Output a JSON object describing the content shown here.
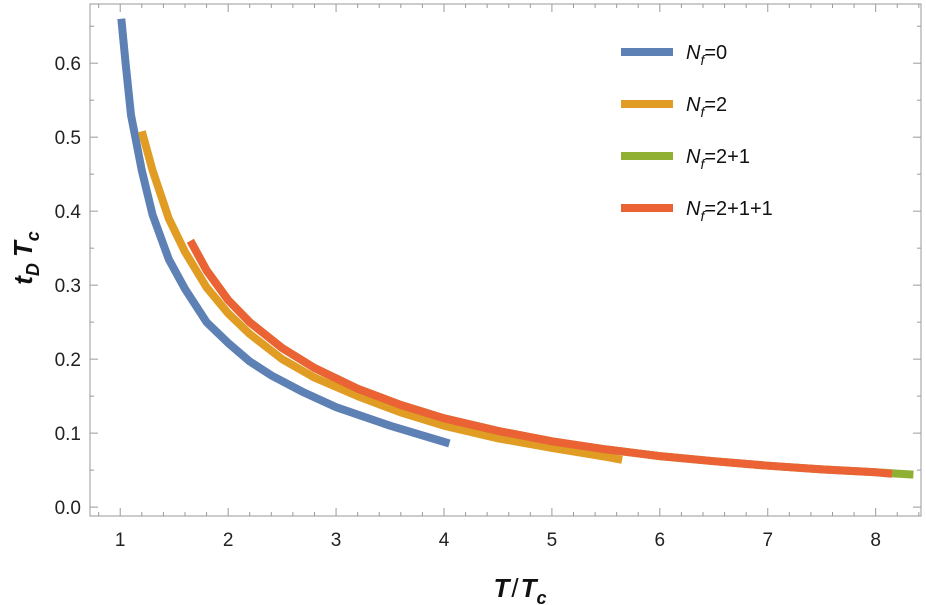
{
  "chart_data": {
    "type": "line",
    "title": "",
    "xlabel": {
      "main": "T",
      "sep": "/",
      "main2": "T",
      "sub2": "c"
    },
    "ylabel": {
      "main": "t",
      "sub": "D",
      "main2": "T",
      "sub2": "c"
    },
    "xlim": [
      0.72,
      8.42
    ],
    "ylim": [
      -0.012,
      0.68
    ],
    "xticks": [
      1,
      2,
      3,
      4,
      5,
      6,
      7,
      8
    ],
    "yticks": [
      0.0,
      0.1,
      0.2,
      0.3,
      0.4,
      0.5,
      0.6
    ],
    "ytick_labels": [
      "0.0",
      "0.1",
      "0.2",
      "0.3",
      "0.4",
      "0.5",
      "0.6"
    ],
    "grid": false,
    "legend_position": "top-right",
    "series": [
      {
        "name": {
          "main": "N",
          "sub": "f",
          "rest": "=0"
        },
        "color": "#5E81B5",
        "points": [
          [
            1.01,
            0.66
          ],
          [
            1.05,
            0.6
          ],
          [
            1.1,
            0.53
          ],
          [
            1.2,
            0.455
          ],
          [
            1.3,
            0.395
          ],
          [
            1.45,
            0.335
          ],
          [
            1.6,
            0.295
          ],
          [
            1.8,
            0.25
          ],
          [
            2.0,
            0.222
          ],
          [
            2.2,
            0.197
          ],
          [
            2.4,
            0.178
          ],
          [
            2.7,
            0.155
          ],
          [
            3.0,
            0.135
          ],
          [
            3.5,
            0.11
          ],
          [
            4.05,
            0.086
          ]
        ]
      },
      {
        "name": {
          "main": "N",
          "sub": "f",
          "rest": "=2"
        },
        "color": "#E19C24",
        "points": [
          [
            1.2,
            0.508
          ],
          [
            1.3,
            0.455
          ],
          [
            1.45,
            0.39
          ],
          [
            1.6,
            0.345
          ],
          [
            1.8,
            0.297
          ],
          [
            2.0,
            0.262
          ],
          [
            2.2,
            0.234
          ],
          [
            2.5,
            0.2
          ],
          [
            2.8,
            0.175
          ],
          [
            3.2,
            0.15
          ],
          [
            3.6,
            0.128
          ],
          [
            4.0,
            0.11
          ],
          [
            4.5,
            0.093
          ],
          [
            5.0,
            0.08
          ],
          [
            5.5,
            0.068
          ],
          [
            5.65,
            0.064
          ]
        ]
      },
      {
        "name": {
          "main": "N",
          "sub": "f",
          "rest": "=2+1"
        },
        "color": "#8FB032",
        "points": [
          [
            1.65,
            0.36
          ],
          [
            1.8,
            0.32
          ],
          [
            2.0,
            0.28
          ],
          [
            2.2,
            0.25
          ],
          [
            2.5,
            0.215
          ],
          [
            2.8,
            0.188
          ],
          [
            3.2,
            0.16
          ],
          [
            3.6,
            0.138
          ],
          [
            4.0,
            0.12
          ],
          [
            4.5,
            0.103
          ],
          [
            5.0,
            0.089
          ],
          [
            5.5,
            0.078
          ],
          [
            6.0,
            0.069
          ],
          [
            6.5,
            0.062
          ],
          [
            7.0,
            0.056
          ],
          [
            7.5,
            0.051
          ],
          [
            8.0,
            0.047
          ],
          [
            8.35,
            0.044
          ]
        ]
      },
      {
        "name": {
          "main": "N",
          "sub": "f",
          "rest": "=2+1+1"
        },
        "color": "#EB6235",
        "points": [
          [
            1.65,
            0.36
          ],
          [
            1.8,
            0.32
          ],
          [
            2.0,
            0.28
          ],
          [
            2.2,
            0.25
          ],
          [
            2.5,
            0.215
          ],
          [
            2.8,
            0.188
          ],
          [
            3.2,
            0.16
          ],
          [
            3.6,
            0.138
          ],
          [
            4.0,
            0.12
          ],
          [
            4.5,
            0.103
          ],
          [
            5.0,
            0.089
          ],
          [
            5.5,
            0.078
          ],
          [
            6.0,
            0.069
          ],
          [
            6.5,
            0.062
          ],
          [
            7.0,
            0.056
          ],
          [
            7.5,
            0.051
          ],
          [
            8.0,
            0.047
          ],
          [
            8.15,
            0.045
          ]
        ]
      }
    ]
  }
}
